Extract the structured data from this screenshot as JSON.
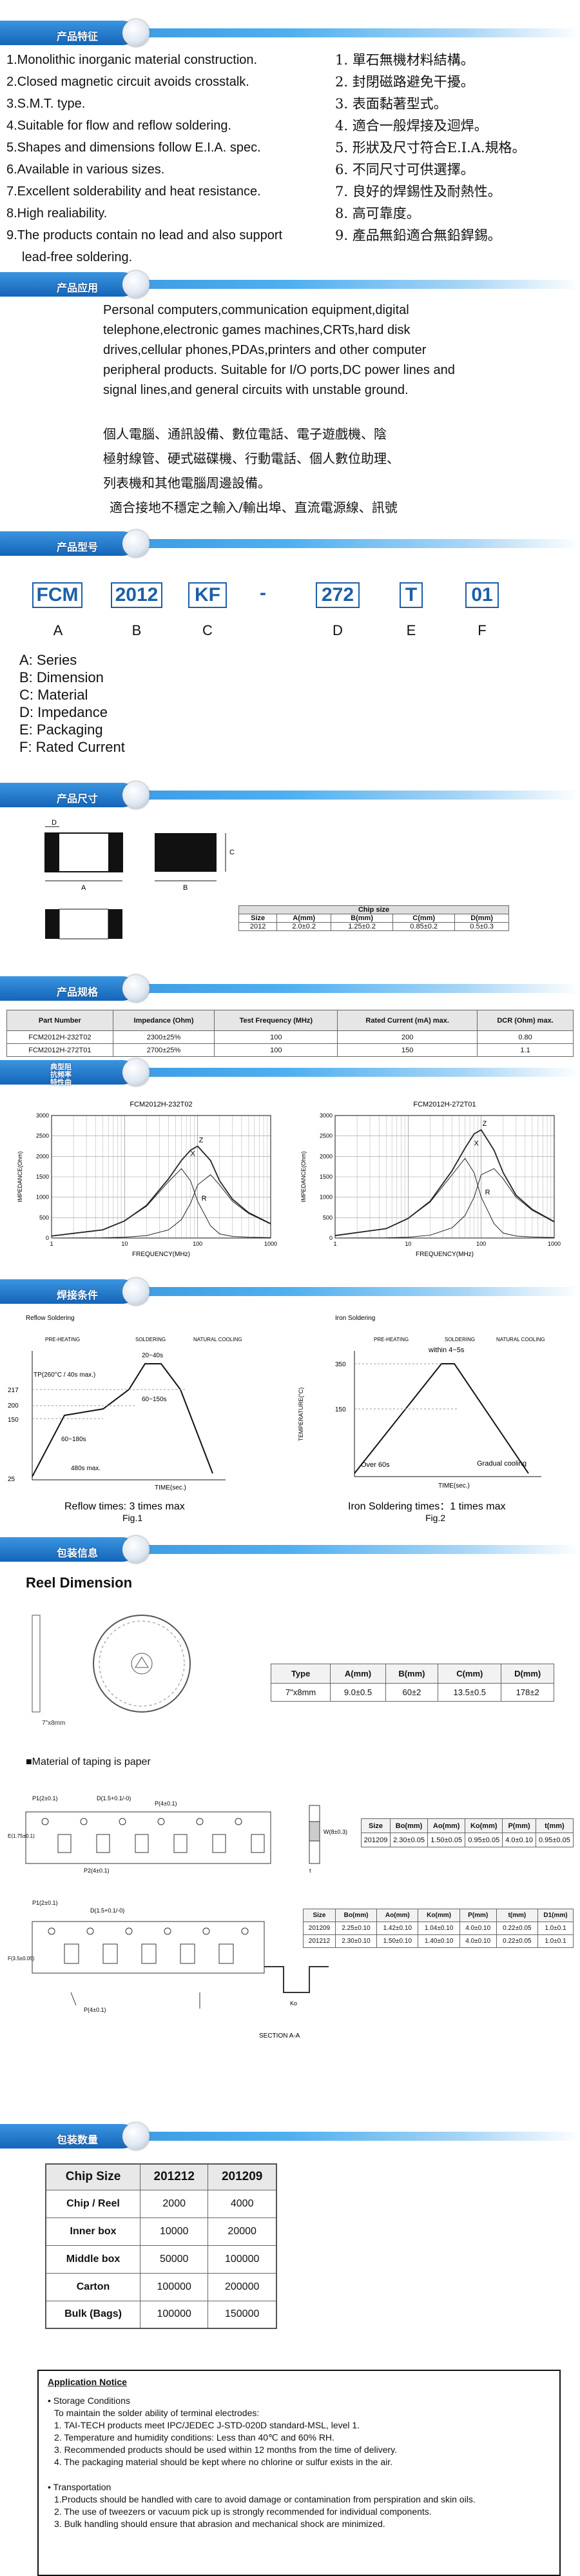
{
  "headers": {
    "features": "产品特征",
    "applications": "产品应用",
    "part_number": "产品型号",
    "dimensions": "产品尺寸",
    "specs": "产品规格",
    "curves": "典型阻抗频率特性曲",
    "soldering": "焊接条件",
    "packaging": "包装信息",
    "quantity": "包装数量"
  },
  "features_en": [
    "1.Monolithic inorganic material construction.",
    "2.Closed magnetic circuit avoids crosstalk.",
    "3.S.M.T. type.",
    "4.Suitable for flow and reflow soldering.",
    "5.Shapes and dimensions follow E.I.A. spec.",
    "6.Available in various sizes.",
    "7.Excellent solderability and heat resistance.",
    "8.High realiability.",
    "9.The products contain no lead and also support",
    "lead-free soldering."
  ],
  "features_zh": [
    "1. 單石無機材料結構。",
    "2. 封閉磁路避免干擾。",
    "3. 表面黏著型式。",
    "4. 適合一般焊接及迴焊。",
    "5. 形狀及尺寸符合E.I.A.規格。",
    "6. 不同尺寸可供選擇。",
    "7. 良好的焊錫性及耐熱性。",
    "8. 高可靠度。",
    "9. 產品無鉛適合無鉛銲錫。"
  ],
  "applications_en": "Personal computers,communication equipment,digital telephone,electronic games machines,CRTs,hard disk drives,cellular phones,PDAs,printers and other computer peripheral products. Suitable for I/O ports,DC power lines and signal lines,and general circuits with unstable ground.",
  "applications_zh": [
    "個人電腦、通訊設備、數位電話、電子遊戲機、陰",
    "極射線管、硬式磁碟機、行動電話、個人數位助理、",
    "列表機和其他電腦周邊設備。",
    "適合接地不穩定之輸入/輸出埠、直流電源線、訊號"
  ],
  "part_number": {
    "codes": [
      "FCM",
      "2012",
      "KF",
      "-",
      "272",
      "T",
      "01"
    ],
    "letters": [
      "A",
      "B",
      "C",
      "D",
      "E",
      "F"
    ],
    "legend": [
      "A: Series",
      "B: Dimension",
      "C: Material",
      "D: Impedance",
      "E: Packaging",
      "F: Rated Current"
    ]
  },
  "dimensions": {
    "labels": {
      "d": "D",
      "a": "A",
      "b": "B",
      "c": "C"
    },
    "table_title": "Chip size",
    "headers": [
      "Size",
      "A(mm)",
      "B(mm)",
      "C(mm)",
      "D(mm)"
    ],
    "row": [
      "2012",
      "2.0±0.2",
      "1.25±0.2",
      "0.85±0.2",
      "0.5±0.3"
    ]
  },
  "specs": {
    "headers": [
      "Part Number",
      "Impedance (Ohm)",
      "Test Frequency (MHz)",
      "Rated Current (mA) max.",
      "DCR (Ohm) max."
    ],
    "rows": [
      [
        "FCM2012H-232T02",
        "2300±25%",
        "100",
        "200",
        "0.80"
      ],
      [
        "FCM2012H-272T01",
        "2700±25%",
        "100",
        "150",
        "1.1"
      ]
    ]
  },
  "charts": [
    {
      "title": "FCM2012H-232T02",
      "ylabel": "IMPEDANCE(Ohm)",
      "xlabel": "FREQUENCY(MHz)",
      "yticks": [
        "0",
        "500",
        "1000",
        "1500",
        "2000",
        "2500",
        "3000"
      ],
      "xticks": [
        "1",
        "10",
        "100",
        "1000"
      ],
      "labels": [
        "Z",
        "R",
        "X"
      ]
    },
    {
      "title": "FCM2012H-272T01",
      "ylabel": "IMPEDANCE(Ohm)",
      "xlabel": "FREQUENCY(MHz)",
      "yticks": [
        "0",
        "500",
        "1000",
        "1500",
        "2000",
        "2500",
        "3000"
      ],
      "xticks": [
        "1",
        "10",
        "100",
        "1000"
      ],
      "labels": [
        "Z",
        "R",
        "X"
      ]
    }
  ],
  "chart_data": [
    {
      "type": "line",
      "title": "FCM2012H-232T02",
      "xlabel": "FREQUENCY(MHz)",
      "ylabel": "IMPEDANCE(Ohm)",
      "xscale": "log",
      "xlim": [
        1,
        1000
      ],
      "ylim": [
        0,
        3000
      ],
      "x": [
        1,
        5,
        10,
        20,
        40,
        60,
        80,
        100,
        150,
        200,
        300,
        500,
        1000
      ],
      "series": [
        {
          "name": "Z",
          "values": [
            50,
            200,
            420,
            800,
            1450,
            1900,
            2150,
            2250,
            1900,
            1400,
            950,
            620,
            350
          ]
        },
        {
          "name": "R",
          "values": [
            0,
            5,
            20,
            60,
            200,
            450,
            850,
            1300,
            1550,
            1300,
            900,
            600,
            340
          ]
        },
        {
          "name": "X",
          "values": [
            50,
            200,
            420,
            780,
            1380,
            1700,
            1400,
            900,
            300,
            100,
            40,
            20,
            10
          ]
        }
      ]
    },
    {
      "type": "line",
      "title": "FCM2012H-272T01",
      "xlabel": "FREQUENCY(MHz)",
      "ylabel": "IMPEDANCE(Ohm)",
      "xscale": "log",
      "xlim": [
        1,
        1000
      ],
      "ylim": [
        0,
        3000
      ],
      "x": [
        1,
        5,
        10,
        20,
        40,
        60,
        80,
        100,
        150,
        200,
        300,
        500,
        1000
      ],
      "series": [
        {
          "name": "Z",
          "values": [
            60,
            230,
            480,
            900,
            1650,
            2200,
            2550,
            2650,
            2150,
            1600,
            1050,
            700,
            400
          ]
        },
        {
          "name": "R",
          "values": [
            0,
            5,
            20,
            70,
            250,
            550,
            1000,
            1550,
            1700,
            1450,
            1000,
            680,
            390
          ]
        },
        {
          "name": "X",
          "values": [
            60,
            230,
            480,
            880,
            1550,
            1950,
            1600,
            1000,
            350,
            120,
            50,
            25,
            12
          ]
        }
      ]
    }
  ],
  "soldering": {
    "reflow_title": "Reflow Soldering",
    "reflow_phases": [
      "PRE-HEATING",
      "SOLDERING",
      "NATURAL COOLING"
    ],
    "reflow_temps": [
      "217",
      "200",
      "150",
      "25"
    ],
    "reflow_notes": [
      "TP(260°C / 40s max.)",
      "20~40s",
      "60~150s",
      "60~180s",
      "480s max."
    ],
    "reflow_xlabel": "TIME(sec.)",
    "reflow_caption": "Reflow times: 3 times max",
    "reflow_fig": "Fig.1",
    "iron_title": "Iron Soldering",
    "iron_phases": [
      "PRE-HEATING",
      "SOLDERING",
      "NATURAL COOLING"
    ],
    "iron_within": "within 4~5s",
    "iron_temps": [
      "350",
      "150"
    ],
    "iron_notes": [
      "Over 60s",
      "Gradual cooling"
    ],
    "iron_ylabel": "TEMPERATURE(°C)",
    "iron_xlabel": "TIME(sec.)",
    "iron_caption": "Iron Soldering times：1 times max",
    "iron_fig": "Fig.2"
  },
  "reel": {
    "title": "Reel Dimension",
    "reel_label": "7\"x8mm",
    "headers": [
      "Type",
      "A(mm)",
      "B(mm)",
      "C(mm)",
      "D(mm)"
    ],
    "row": [
      "7\"x8mm",
      "9.0±0.5",
      "60±2",
      "13.5±0.5",
      "178±2"
    ]
  },
  "taping": {
    "note": "■Material of taping is paper",
    "paper_headers": [
      "Size",
      "Bo(mm)",
      "Ao(mm)",
      "Ko(mm)",
      "P(mm)",
      "t(mm)"
    ],
    "paper_row": [
      "201209",
      "2.30±0.05",
      "1.50±0.05",
      "0.95±0.05",
      "4.0±0.10",
      "0.95±0.05"
    ],
    "emb_headers": [
      "Size",
      "Bo(mm)",
      "Ao(mm)",
      "Ko(mm)",
      "P(mm)",
      "t(mm)",
      "D1(mm)"
    ],
    "emb_rows": [
      [
        "201209",
        "2.25±0.10",
        "1.42±0.10",
        "1.04±0.10",
        "4.0±0.10",
        "0.22±0.05",
        "1.0±0.1"
      ],
      [
        "201212",
        "2.30±0.10",
        "1.50±0.10",
        "1.40±0.10",
        "4.0±0.10",
        "0.22±0.05",
        "1.0±0.1"
      ]
    ],
    "section_label": "SECTION A-A",
    "dim_labels": [
      "P1(2±0.1)",
      "D(1.5+0.1/-0)",
      "P(4±0.1)",
      "E(1.75±0.1)",
      "F(3.5±0.05)",
      "W(8±0.3)",
      "P2(4±0.1)",
      "Bo",
      "Ao",
      "Ko",
      "t"
    ]
  },
  "quantity": {
    "headers": [
      "Chip Size",
      "201212",
      "201209"
    ],
    "rows": [
      [
        "Chip / Reel",
        "2000",
        "4000"
      ],
      [
        "Inner box",
        "10000",
        "20000"
      ],
      [
        "Middle box",
        "50000",
        "100000"
      ],
      [
        "Carton",
        "100000",
        "200000"
      ],
      [
        "Bulk (Bags)",
        "100000",
        "150000"
      ]
    ]
  },
  "notice": {
    "title": "Application Notice",
    "storage_title": "• Storage Conditions",
    "storage_lines": [
      "To maintain the solder ability of terminal electrodes:",
      "1. TAI-TECH products meet IPC/JEDEC J-STD-020D standard-MSL, level 1.",
      "2. Temperature and humidity conditions: Less than 40℃ and 60% RH.",
      "3. Recommended products should be used within 12 months from the time of delivery.",
      "4. The packaging material should be kept where no chlorine or sulfur exists in the air."
    ],
    "transport_title": "• Transportation",
    "transport_lines": [
      "1.Products should be handled with care to avoid damage or contamination from perspiration and skin oils.",
      "2. The use of tweezers or vacuum pick up is strongly recommended for individual components.",
      "3. Bulk handling should ensure that abrasion and mechanical shock are minimized."
    ]
  }
}
